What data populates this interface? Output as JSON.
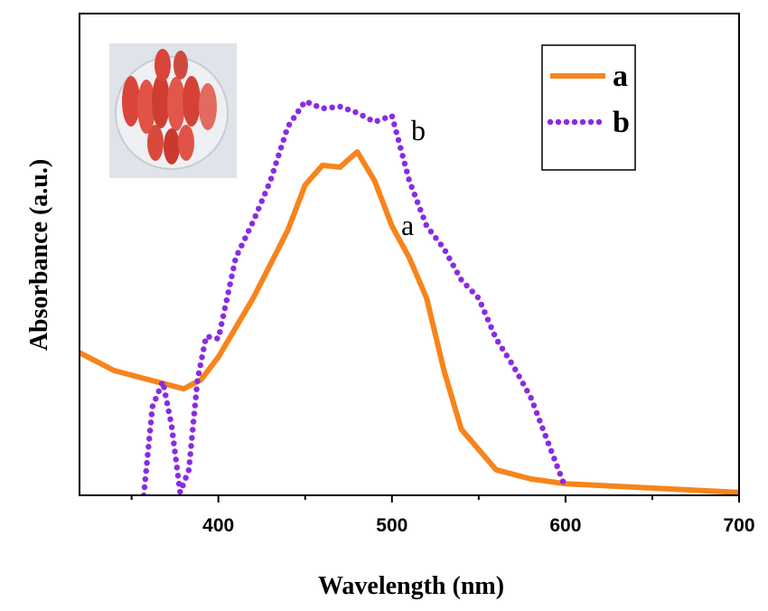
{
  "chart_data": {
    "type": "line",
    "xlabel": "Wavelength (nm)",
    "ylabel": "Absorbance (a.u.)",
    "xlim": [
      320,
      700
    ],
    "ylim": [
      0,
      1
    ],
    "xticks": [
      400,
      500,
      600,
      700
    ],
    "xminorticks": [
      350,
      450,
      550,
      650
    ],
    "annotations": [
      "a",
      "b"
    ],
    "legend": "upper right",
    "series": [
      {
        "name": "a",
        "color": "#f7841c",
        "style": "solid",
        "x": [
          320,
          340,
          360,
          380,
          390,
          400,
          420,
          440,
          450,
          460,
          470,
          480,
          490,
          500,
          510,
          520,
          530,
          540,
          560,
          580,
          600,
          650,
          700
        ],
        "values": [
          0.296,
          0.259,
          0.24,
          0.221,
          0.24,
          0.287,
          0.409,
          0.55,
          0.644,
          0.685,
          0.681,
          0.713,
          0.653,
          0.559,
          0.493,
          0.409,
          0.259,
          0.137,
          0.053,
          0.034,
          0.024,
          0.015,
          0.006
        ]
      },
      {
        "name": "b",
        "color": "#8a2be2",
        "style": "dotted",
        "x": [
          357,
          362,
          368,
          373,
          378,
          383,
          388,
          393,
          400,
          410,
          420,
          430,
          440,
          450,
          460,
          470,
          480,
          490,
          500,
          510,
          520,
          530,
          540,
          550,
          560,
          570,
          580,
          590,
          600
        ],
        "values": [
          0,
          0.184,
          0.236,
          0.146,
          0.006,
          0.053,
          0.24,
          0.33,
          0.325,
          0.493,
          0.568,
          0.653,
          0.765,
          0.818,
          0.803,
          0.807,
          0.794,
          0.775,
          0.788,
          0.653,
          0.559,
          0.512,
          0.447,
          0.409,
          0.325,
          0.268,
          0.203,
          0.109,
          0.015
        ]
      }
    ]
  }
}
